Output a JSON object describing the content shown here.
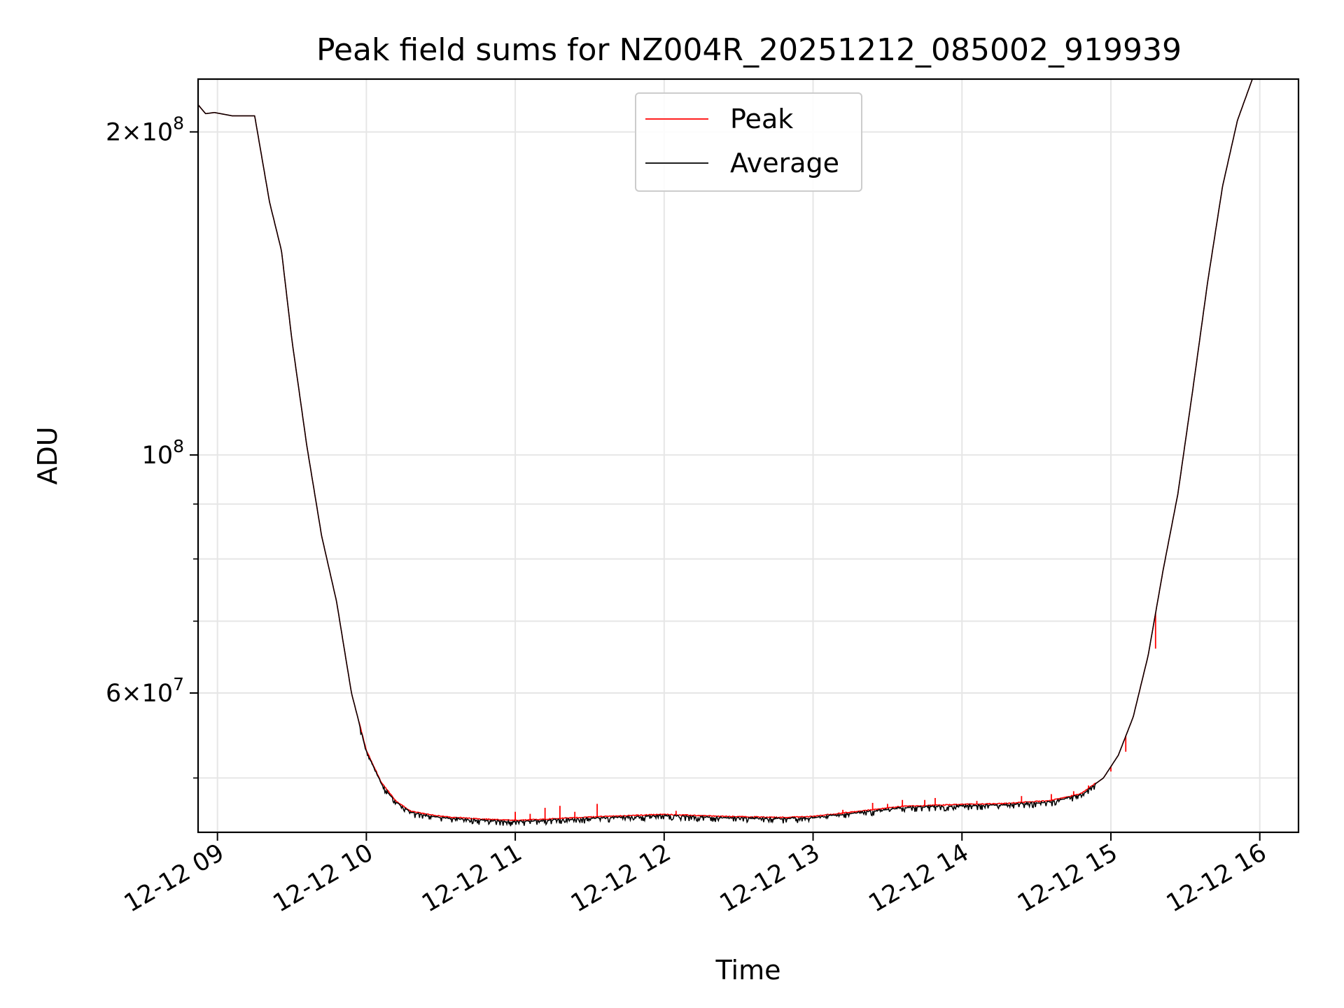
{
  "chart_data": {
    "type": "line",
    "title": "Peak field sums for NZ004R_20251212_085002_919939",
    "xlabel": "Time",
    "ylabel": "ADU",
    "yscale": "log",
    "xlim": [
      8.87,
      16.26
    ],
    "ylim": [
      44500000,
      224000000
    ],
    "grid": true,
    "legend_position": "top-center",
    "x_ticks": [
      {
        "value": 9,
        "label": "12-12 09"
      },
      {
        "value": 10,
        "label": "12-12 10"
      },
      {
        "value": 11,
        "label": "12-12 11"
      },
      {
        "value": 12,
        "label": "12-12 12"
      },
      {
        "value": 13,
        "label": "12-12 13"
      },
      {
        "value": 14,
        "label": "12-12 14"
      },
      {
        "value": 15,
        "label": "12-12 15"
      },
      {
        "value": 16,
        "label": "12-12 16"
      }
    ],
    "y_ticks": [
      {
        "value": 60000000,
        "base": "6",
        "exp": "7"
      },
      {
        "value": 100000000,
        "base": "10",
        "exp": "8"
      },
      {
        "value": 200000000,
        "base": "2",
        "exp": "8"
      }
    ],
    "y_minor_ticks": [
      50000000,
      70000000,
      80000000,
      90000000
    ],
    "series": [
      {
        "name": "Peak",
        "color": "#ff0000"
      },
      {
        "name": "Average",
        "color": "#000000"
      }
    ],
    "average_curve": [
      [
        8.87,
        212000000
      ],
      [
        8.92,
        208000000
      ],
      [
        8.98,
        208500000
      ],
      [
        9.1,
        207000000
      ],
      [
        9.25,
        207000000
      ],
      [
        9.35,
        172000000
      ],
      [
        9.43,
        155000000
      ],
      [
        9.5,
        128000000
      ],
      [
        9.6,
        102000000
      ],
      [
        9.7,
        84000000
      ],
      [
        9.8,
        73000000
      ],
      [
        9.9,
        60000000
      ],
      [
        10.0,
        53000000
      ],
      [
        10.1,
        49500000
      ],
      [
        10.2,
        47500000
      ],
      [
        10.3,
        46500000
      ],
      [
        10.5,
        46000000
      ],
      [
        10.7,
        45800000
      ],
      [
        11.0,
        45600000
      ],
      [
        11.3,
        45800000
      ],
      [
        11.6,
        46000000
      ],
      [
        12.0,
        46200000
      ],
      [
        12.4,
        46000000
      ],
      [
        12.8,
        45900000
      ],
      [
        13.0,
        46000000
      ],
      [
        13.3,
        46500000
      ],
      [
        13.6,
        47000000
      ],
      [
        14.0,
        47200000
      ],
      [
        14.3,
        47300000
      ],
      [
        14.6,
        47600000
      ],
      [
        14.8,
        48300000
      ],
      [
        14.95,
        50000000
      ],
      [
        15.05,
        52500000
      ],
      [
        15.15,
        57000000
      ],
      [
        15.25,
        65000000
      ],
      [
        15.35,
        78000000
      ],
      [
        15.45,
        92000000
      ],
      [
        15.55,
        115000000
      ],
      [
        15.65,
        145000000
      ],
      [
        15.75,
        178000000
      ],
      [
        15.85,
        205000000
      ],
      [
        15.95,
        224000000
      ]
    ],
    "peak_spikes": [
      [
        11.0,
        46500000
      ],
      [
        11.1,
        46300000
      ],
      [
        11.2,
        46900000
      ],
      [
        11.3,
        47100000
      ],
      [
        11.4,
        46500000
      ],
      [
        11.55,
        47300000
      ],
      [
        12.08,
        46600000
      ],
      [
        13.2,
        46700000
      ],
      [
        13.4,
        47400000
      ],
      [
        13.5,
        47300000
      ],
      [
        13.6,
        47700000
      ],
      [
        13.75,
        47700000
      ],
      [
        13.82,
        47900000
      ],
      [
        14.1,
        47600000
      ],
      [
        14.4,
        48100000
      ],
      [
        14.6,
        48300000
      ],
      [
        14.75,
        48600000
      ],
      [
        14.85,
        49200000
      ],
      [
        15.0,
        50700000
      ],
      [
        15.1,
        52900000
      ],
      [
        15.3,
        66000000
      ]
    ]
  }
}
